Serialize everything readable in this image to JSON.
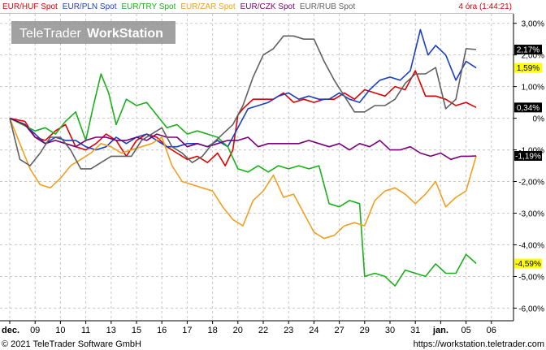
{
  "legend": {
    "items": [
      {
        "label": "EUR/HUF Spot",
        "color": "#e00000"
      },
      {
        "label": "EUR/PLN Spot",
        "color": "#1a3fc0"
      },
      {
        "label": "EUR/TRY Spot",
        "color": "#1ab01a"
      },
      {
        "label": "EUR/ZAR Spot",
        "color": "#f0a020"
      },
      {
        "label": "EUR/CZK Spot",
        "color": "#7a007a"
      },
      {
        "label": "EUR/RUB Spot",
        "color": "#606060"
      }
    ],
    "time_label": "4 óra (1:44:21)"
  },
  "watermark": {
    "brand": "TeleTrader",
    "product": "WorkStation"
  },
  "footer": {
    "copyright": "© 2021 TeleTrader Software GmbH",
    "url": "https://workstation.teletrader.com"
  },
  "chart_data": {
    "type": "line",
    "x_ticks": [
      "dec.",
      "09",
      "10",
      "11",
      "13",
      "15",
      "16",
      "17",
      "18",
      "20",
      "22",
      "23",
      "24",
      "27",
      "29",
      "30",
      "31",
      "jan.",
      "05",
      "06"
    ],
    "y_ticks": [
      "3,00%",
      "2,00%",
      "1,00%",
      "0%",
      "-1,00%",
      "-2,00%",
      "-3,00%",
      "-4,00%",
      "-5,00%",
      "-6,00%"
    ],
    "ylim": [
      -6.4,
      3.3
    ],
    "grid": true,
    "badges": [
      {
        "text": "2,17%",
        "value": 2.17,
        "bg": "#000000",
        "fg": "#ffffff"
      },
      {
        "text": "1,59%",
        "value": 1.59,
        "bg": "#ffff00",
        "fg": "#000000"
      },
      {
        "text": "0,34%",
        "value": 0.34,
        "bg": "#000000",
        "fg": "#ffffff"
      },
      {
        "text": "-1,19%",
        "value": -1.19,
        "bg": "#000000",
        "fg": "#ffffff"
      },
      {
        "text": "-4,59%",
        "value": -4.59,
        "bg": "#ffff00",
        "fg": "#000000"
      }
    ],
    "series": [
      {
        "name": "EUR/HUF Spot",
        "color": "#e00000",
        "points": [
          [
            0,
            0
          ],
          [
            0.6,
            -0.1
          ],
          [
            1.0,
            -0.6
          ],
          [
            1.4,
            -0.7
          ],
          [
            1.8,
            -0.4
          ],
          [
            2.2,
            -0.2
          ],
          [
            2.6,
            -0.9
          ],
          [
            3.0,
            -1.0
          ],
          [
            3.4,
            -0.8
          ],
          [
            3.8,
            -0.5
          ],
          [
            4.2,
            -0.7
          ],
          [
            4.6,
            -1.2
          ],
          [
            5.0,
            -0.7
          ],
          [
            5.4,
            -0.5
          ],
          [
            5.8,
            -0.6
          ],
          [
            6.2,
            -0.9
          ],
          [
            6.6,
            -1.1
          ],
          [
            7.0,
            -1.3
          ],
          [
            7.4,
            -1.2
          ],
          [
            7.8,
            -1.4
          ],
          [
            8.2,
            -1.1
          ],
          [
            8.5,
            -1.5
          ],
          [
            8.8,
            -1.0
          ],
          [
            9.0,
            0.1
          ],
          [
            9.2,
            0.3
          ],
          [
            9.6,
            0.6
          ],
          [
            10.0,
            0.6
          ],
          [
            10.4,
            0.6
          ],
          [
            10.8,
            0.8
          ],
          [
            11.2,
            0.5
          ],
          [
            11.6,
            0.6
          ],
          [
            12.0,
            0.5
          ],
          [
            12.4,
            0.6
          ],
          [
            12.8,
            0.6
          ],
          [
            13.2,
            0.8
          ],
          [
            13.6,
            0.6
          ],
          [
            14.0,
            0.9
          ],
          [
            14.4,
            0.8
          ],
          [
            14.8,
            0.7
          ],
          [
            15.2,
            1.0
          ],
          [
            15.6,
            0.9
          ],
          [
            16.0,
            1.5
          ],
          [
            16.4,
            0.7
          ],
          [
            16.8,
            0.7
          ],
          [
            17.2,
            0.6
          ],
          [
            17.6,
            0.4
          ],
          [
            18.0,
            0.5
          ],
          [
            18.4,
            0.34
          ]
        ]
      },
      {
        "name": "EUR/PLN Spot",
        "color": "#1a3fc0",
        "points": [
          [
            0,
            0
          ],
          [
            0.6,
            -0.2
          ],
          [
            1.0,
            -0.5
          ],
          [
            1.4,
            -0.8
          ],
          [
            1.8,
            -0.6
          ],
          [
            2.2,
            -0.7
          ],
          [
            2.6,
            -0.7
          ],
          [
            3.0,
            -0.9
          ],
          [
            3.4,
            -1.0
          ],
          [
            3.8,
            -0.9
          ],
          [
            4.2,
            -0.6
          ],
          [
            4.6,
            -0.8
          ],
          [
            5.0,
            -0.6
          ],
          [
            5.4,
            -0.5
          ],
          [
            5.8,
            -0.7
          ],
          [
            6.2,
            -0.9
          ],
          [
            6.6,
            -0.9
          ],
          [
            7.0,
            -0.8
          ],
          [
            7.4,
            -0.8
          ],
          [
            7.8,
            -0.9
          ],
          [
            8.2,
            -0.7
          ],
          [
            8.6,
            -0.9
          ],
          [
            9.0,
            -0.3
          ],
          [
            9.4,
            0.3
          ],
          [
            9.8,
            0.4
          ],
          [
            10.2,
            0.5
          ],
          [
            10.6,
            0.7
          ],
          [
            11.0,
            0.8
          ],
          [
            11.4,
            0.6
          ],
          [
            11.8,
            0.7
          ],
          [
            12.2,
            0.6
          ],
          [
            12.6,
            0.6
          ],
          [
            13.0,
            0.8
          ],
          [
            13.4,
            0.6
          ],
          [
            13.8,
            0.5
          ],
          [
            14.2,
            0.9
          ],
          [
            14.6,
            1.2
          ],
          [
            15.0,
            1.3
          ],
          [
            15.4,
            1.2
          ],
          [
            15.8,
            1.5
          ],
          [
            16.2,
            2.8
          ],
          [
            16.5,
            2.0
          ],
          [
            16.8,
            2.3
          ],
          [
            17.2,
            2.0
          ],
          [
            17.6,
            1.2
          ],
          [
            18.0,
            1.8
          ],
          [
            18.4,
            1.59
          ]
        ]
      },
      {
        "name": "EUR/TRY Spot",
        "color": "#1ab01a",
        "points": [
          [
            0,
            0
          ],
          [
            0.5,
            -0.2
          ],
          [
            1.0,
            -0.4
          ],
          [
            1.4,
            -0.3
          ],
          [
            1.8,
            -0.5
          ],
          [
            2.2,
            -0.1
          ],
          [
            2.6,
            0.2
          ],
          [
            3.0,
            -0.7
          ],
          [
            3.3,
            0.4
          ],
          [
            3.6,
            1.4
          ],
          [
            3.9,
            0.8
          ],
          [
            4.2,
            -0.2
          ],
          [
            4.6,
            0.6
          ],
          [
            5.0,
            0.4
          ],
          [
            5.4,
            0.5
          ],
          [
            5.8,
            0.1
          ],
          [
            6.2,
            -0.3
          ],
          [
            6.6,
            -0.2
          ],
          [
            7.0,
            -0.5
          ],
          [
            7.4,
            -0.4
          ],
          [
            7.8,
            -0.5
          ],
          [
            8.2,
            -0.6
          ],
          [
            8.6,
            -0.9
          ],
          [
            9.0,
            -1.6
          ],
          [
            9.4,
            -1.7
          ],
          [
            9.8,
            -1.5
          ],
          [
            10.2,
            -1.7
          ],
          [
            10.6,
            -1.5
          ],
          [
            11.0,
            -1.6
          ],
          [
            11.4,
            -1.5
          ],
          [
            11.8,
            -1.6
          ],
          [
            12.2,
            -1.5
          ],
          [
            12.6,
            -2.7
          ],
          [
            13.0,
            -2.8
          ],
          [
            13.4,
            -2.6
          ],
          [
            13.8,
            -2.7
          ],
          [
            14.0,
            -5.0
          ],
          [
            14.4,
            -4.9
          ],
          [
            14.8,
            -5.0
          ],
          [
            15.2,
            -5.3
          ],
          [
            15.6,
            -4.8
          ],
          [
            16.0,
            -4.9
          ],
          [
            16.4,
            -5.0
          ],
          [
            16.8,
            -4.6
          ],
          [
            17.2,
            -4.9
          ],
          [
            17.6,
            -4.9
          ],
          [
            18.0,
            -4.3
          ],
          [
            18.4,
            -4.59
          ]
        ]
      },
      {
        "name": "EUR/ZAR Spot",
        "color": "#f0a020",
        "points": [
          [
            0,
            0
          ],
          [
            0.4,
            -0.8
          ],
          [
            0.8,
            -1.6
          ],
          [
            1.2,
            -2.1
          ],
          [
            1.6,
            -2.2
          ],
          [
            2.0,
            -1.9
          ],
          [
            2.4,
            -1.5
          ],
          [
            2.8,
            -1.3
          ],
          [
            3.2,
            -1.1
          ],
          [
            3.6,
            -0.8
          ],
          [
            4.0,
            -0.9
          ],
          [
            4.4,
            -1.1
          ],
          [
            4.8,
            -1.0
          ],
          [
            5.2,
            -0.9
          ],
          [
            5.6,
            -0.8
          ],
          [
            6.0,
            -0.6
          ],
          [
            6.4,
            -1.5
          ],
          [
            6.8,
            -2.0
          ],
          [
            7.2,
            -2.1
          ],
          [
            7.6,
            -2.2
          ],
          [
            8.0,
            -2.3
          ],
          [
            8.4,
            -2.8
          ],
          [
            8.8,
            -3.2
          ],
          [
            9.2,
            -3.4
          ],
          [
            9.6,
            -2.6
          ],
          [
            10.0,
            -2.3
          ],
          [
            10.4,
            -1.8
          ],
          [
            10.8,
            -2.5
          ],
          [
            11.2,
            -2.4
          ],
          [
            11.6,
            -3.0
          ],
          [
            12.0,
            -3.6
          ],
          [
            12.4,
            -3.8
          ],
          [
            12.8,
            -3.7
          ],
          [
            13.2,
            -3.4
          ],
          [
            13.6,
            -3.3
          ],
          [
            14.0,
            -3.4
          ],
          [
            14.4,
            -2.6
          ],
          [
            14.8,
            -2.3
          ],
          [
            15.2,
            -2.2
          ],
          [
            15.6,
            -2.4
          ],
          [
            16.0,
            -2.7
          ],
          [
            16.4,
            -2.4
          ],
          [
            16.8,
            -2.0
          ],
          [
            17.2,
            -2.8
          ],
          [
            17.6,
            -2.5
          ],
          [
            18.0,
            -2.3
          ],
          [
            18.4,
            -1.19
          ]
        ]
      },
      {
        "name": "EUR/CZK Spot",
        "color": "#7a007a",
        "points": [
          [
            0,
            0
          ],
          [
            0.6,
            -0.2
          ],
          [
            1.0,
            -0.6
          ],
          [
            1.4,
            -0.8
          ],
          [
            1.8,
            -0.7
          ],
          [
            2.2,
            -0.8
          ],
          [
            2.6,
            -0.9
          ],
          [
            3.0,
            -0.7
          ],
          [
            3.4,
            -0.6
          ],
          [
            3.8,
            -0.6
          ],
          [
            4.2,
            -0.7
          ],
          [
            4.6,
            -0.7
          ],
          [
            5.0,
            -0.6
          ],
          [
            5.4,
            -0.7
          ],
          [
            5.8,
            -0.5
          ],
          [
            6.2,
            -0.6
          ],
          [
            6.6,
            -0.6
          ],
          [
            7.0,
            -0.9
          ],
          [
            7.4,
            -0.8
          ],
          [
            7.8,
            -0.9
          ],
          [
            8.2,
            -0.8
          ],
          [
            8.6,
            -0.7
          ],
          [
            9.0,
            -0.7
          ],
          [
            9.4,
            -0.6
          ],
          [
            9.8,
            -0.9
          ],
          [
            10.2,
            -0.8
          ],
          [
            10.6,
            -0.8
          ],
          [
            11.0,
            -0.8
          ],
          [
            11.4,
            -0.8
          ],
          [
            11.8,
            -0.7
          ],
          [
            12.2,
            -0.8
          ],
          [
            12.6,
            -0.9
          ],
          [
            13.0,
            -0.8
          ],
          [
            13.4,
            -1.0
          ],
          [
            13.8,
            -0.8
          ],
          [
            14.2,
            -0.9
          ],
          [
            14.6,
            -0.7
          ],
          [
            15.0,
            -1.0
          ],
          [
            15.4,
            -1.0
          ],
          [
            15.8,
            -0.9
          ],
          [
            16.2,
            -1.1
          ],
          [
            16.6,
            -1.2
          ],
          [
            17.0,
            -1.1
          ],
          [
            17.4,
            -1.3
          ],
          [
            17.8,
            -1.2
          ],
          [
            18.1,
            -1.2
          ],
          [
            18.4,
            -1.19
          ]
        ]
      },
      {
        "name": "EUR/RUB Spot",
        "color": "#606060",
        "points": [
          [
            0,
            0
          ],
          [
            0.4,
            -1.3
          ],
          [
            0.8,
            -1.5
          ],
          [
            1.2,
            -1.1
          ],
          [
            1.6,
            -0.6
          ],
          [
            2.0,
            -0.6
          ],
          [
            2.4,
            -1.0
          ],
          [
            2.8,
            -1.6
          ],
          [
            3.2,
            -1.6
          ],
          [
            3.6,
            -1.4
          ],
          [
            4.0,
            -1.2
          ],
          [
            4.4,
            -1.2
          ],
          [
            4.8,
            -1.2
          ],
          [
            5.2,
            -0.7
          ],
          [
            5.6,
            -0.5
          ],
          [
            6.0,
            -0.3
          ],
          [
            6.4,
            -0.9
          ],
          [
            6.8,
            -1.1
          ],
          [
            7.2,
            -1.4
          ],
          [
            7.6,
            -1.2
          ],
          [
            8.0,
            -0.8
          ],
          [
            8.4,
            -0.5
          ],
          [
            8.8,
            -0.2
          ],
          [
            9.2,
            0.4
          ],
          [
            9.6,
            1.3
          ],
          [
            10.0,
            2.0
          ],
          [
            10.4,
            2.2
          ],
          [
            10.8,
            2.6
          ],
          [
            11.2,
            2.6
          ],
          [
            11.6,
            2.5
          ],
          [
            12.0,
            2.5
          ],
          [
            12.4,
            1.8
          ],
          [
            12.8,
            1.2
          ],
          [
            13.2,
            0.7
          ],
          [
            13.6,
            0.2
          ],
          [
            14.0,
            0.2
          ],
          [
            14.4,
            0.4
          ],
          [
            14.8,
            0.4
          ],
          [
            15.2,
            0.6
          ],
          [
            15.6,
            1.1
          ],
          [
            16.0,
            1.4
          ],
          [
            16.4,
            1.4
          ],
          [
            16.8,
            1.6
          ],
          [
            17.2,
            0.3
          ],
          [
            17.6,
            0.6
          ],
          [
            18.0,
            2.2
          ],
          [
            18.4,
            2.17
          ]
        ]
      }
    ]
  }
}
